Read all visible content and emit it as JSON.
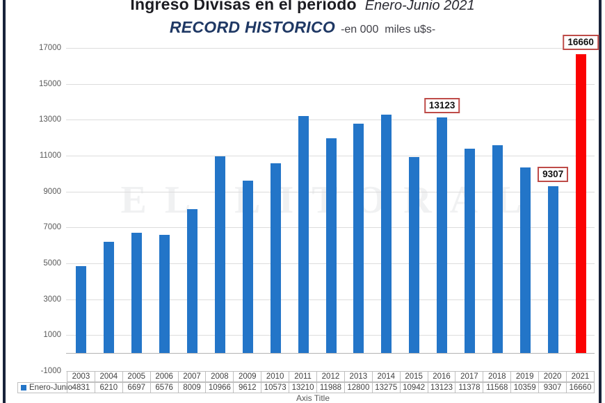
{
  "title": {
    "main": "Ingreso Divisas en el período",
    "period": "Enero-Junio 2021",
    "subtitle": "RECORD HISTORICO",
    "subtitle_note": "-en 000  miles u$s-"
  },
  "watermark": "EL LITORAL",
  "legend_label": "Enero-Junio",
  "axis_title": "Axis Title",
  "colors": {
    "bar_blue": "#2375c8",
    "bar_red": "#fb0202",
    "annotation_border": "#be4b48",
    "subtitle_blue": "#1f3864",
    "frame_border": "#18233a"
  },
  "chart_data": {
    "type": "bar",
    "title": "Ingreso Divisas en el período Enero-Junio 2021 — RECORD HISTORICO -en 000 miles u$s-",
    "categories": [
      "2003",
      "2004",
      "2005",
      "2006",
      "2007",
      "2008",
      "2009",
      "2010",
      "2011",
      "2012",
      "2013",
      "2014",
      "2015",
      "2016",
      "2017",
      "2018",
      "2019",
      "2020",
      "2021"
    ],
    "series": [
      {
        "name": "Enero-Junio",
        "values": [
          4831,
          6210,
          6697,
          6576,
          8009,
          10966,
          9612,
          10573,
          13210,
          11988,
          12800,
          13275,
          10942,
          13123,
          11378,
          11568,
          10359,
          9307,
          16660
        ]
      }
    ],
    "yticks": [
      17000,
      15000,
      13000,
      11000,
      9000,
      7000,
      5000,
      3000,
      1000,
      -1000
    ],
    "ylim": [
      -1000,
      17000
    ],
    "xlabel": "Axis Title",
    "grid": true,
    "highlight_category": "2021",
    "annotations": [
      {
        "category": "2016",
        "label": "13123"
      },
      {
        "category": "2020",
        "label": "9307"
      },
      {
        "category": "2021",
        "label": "16660"
      }
    ],
    "legend_position": "table-left-bottom",
    "data_table_shown": true
  }
}
